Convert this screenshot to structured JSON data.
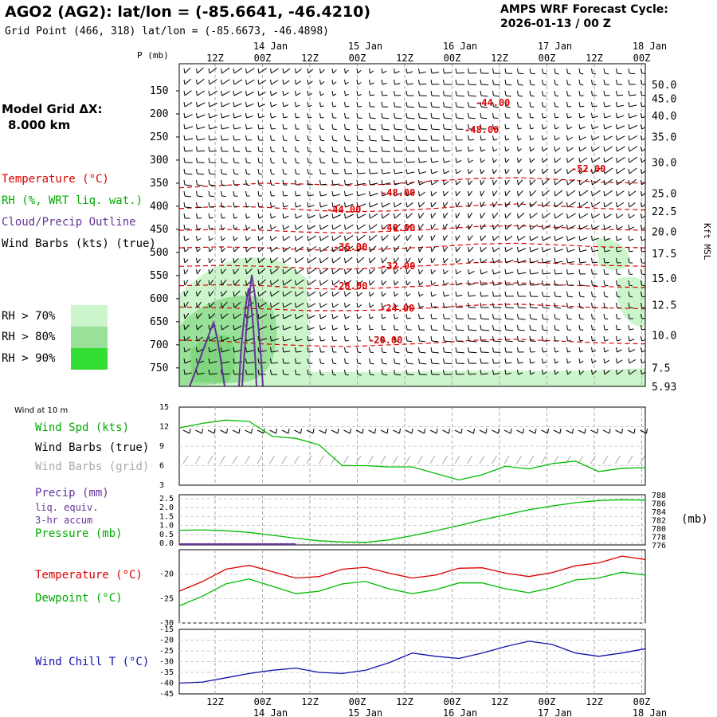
{
  "header": {
    "title": "AGO2 (AG2):  lat/lon = (-85.6641, -46.4210)",
    "grid_point": "Grid Point (466, 318) lat/lon = (-85.6673, -46.4898)",
    "cycle_label": "AMPS WRF Forecast Cycle:",
    "cycle_value": "2026-01-13 / 00  Z"
  },
  "left_panel": {
    "model_grid_label": "Model Grid ΔX:",
    "model_grid_value": "8.000 km",
    "legend_temperature": "Temperature (°C)",
    "legend_rh": "RH (%, WRT liq. wat.)",
    "legend_cloud": "Cloud/Precip Outline",
    "legend_wind": "Wind Barbs (kts) (true)",
    "rh_levels": [
      "RH > 70%",
      "RH > 80%",
      "RH > 90%"
    ]
  },
  "colors": {
    "temperature": "#dd0000",
    "rh70": "#ccf5cc",
    "rh80": "#99e099",
    "rh90": "#33dd33",
    "cloud": "#663399",
    "dewpoint": "#00bb00",
    "windchill": "#1111aa",
    "grid_wind": "#aaaaaa"
  },
  "time_axis": {
    "top_hours": [
      "12Z",
      "00Z",
      "12Z",
      "00Z",
      "12Z",
      "00Z",
      "12Z",
      "00Z",
      "12Z",
      "00Z"
    ],
    "top_dates": [
      "14 Jan",
      "15 Jan",
      "16 Jan",
      "17 Jan",
      "18 Jan"
    ],
    "bottom_hours": [
      "12Z",
      "00Z",
      "12Z",
      "00Z",
      "12Z",
      "00Z",
      "12Z",
      "00Z",
      "12Z",
      "00Z"
    ],
    "bottom_dates": [
      "14 Jan",
      "15 Jan",
      "16 Jan",
      "17 Jan",
      "18 Jan"
    ]
  },
  "chart_data": [
    {
      "type": "line",
      "name": "upper-air-cross-section",
      "ylabel": "P (mb)",
      "ylabel_right": "Kft MSL",
      "pressure_ticks": [
        "150",
        "200",
        "250",
        "300",
        "350",
        "400",
        "450",
        "500",
        "550",
        "600",
        "650",
        "700",
        "750"
      ],
      "height_ticks": [
        "50.0",
        "45.0",
        "40.0",
        "35.0",
        "30.0",
        "25.0",
        "22.5",
        "20.0",
        "17.5",
        "15.0",
        "12.5",
        "10.0",
        "7.5",
        "5.93"
      ],
      "isotherm_labels": [
        "-44.00",
        "-48.00",
        "-52.00",
        "-48.00",
        "-44.00",
        "-40.00",
        "-36.00",
        "-32.00",
        "-28.00",
        "-24.00",
        "-20.00"
      ],
      "series": [
        {
          "name": "isotherm -20",
          "values": [
            690,
            692,
            698,
            702,
            704,
            700,
            696,
            690,
            688,
            692,
            696,
            698
          ]
        },
        {
          "name": "isotherm -24",
          "values": [
            618,
            620,
            622,
            626,
            626,
            624,
            620,
            614,
            612,
            616,
            620,
            622
          ]
        },
        {
          "name": "isotherm -28",
          "values": [
            572,
            570,
            572,
            578,
            580,
            576,
            572,
            566,
            566,
            570,
            574,
            576
          ]
        },
        {
          "name": "isotherm -32",
          "values": [
            530,
            528,
            530,
            534,
            536,
            532,
            528,
            522,
            520,
            524,
            528,
            530
          ]
        },
        {
          "name": "isotherm -36",
          "values": [
            490,
            488,
            490,
            494,
            496,
            492,
            488,
            482,
            480,
            484,
            488,
            490
          ]
        },
        {
          "name": "isotherm -40",
          "values": [
            452,
            450,
            452,
            456,
            458,
            454,
            450,
            444,
            442,
            446,
            450,
            452
          ]
        },
        {
          "name": "isotherm -44",
          "values": [
            405,
            400,
            402,
            408,
            412,
            410,
            405,
            398,
            395,
            400,
            405,
            408
          ]
        },
        {
          "name": "isotherm -48",
          "values": [
            360,
            355,
            350,
            352,
            355,
            352,
            345,
            340,
            338,
            342,
            348,
            350
          ]
        }
      ]
    },
    {
      "type": "line",
      "name": "surface-wind-speed",
      "title": "Wind at 10 m",
      "legend": [
        "Wind Spd (kts)",
        "Wind Barbs (true)",
        "Wind Barbs (grid)"
      ],
      "y_ticks": [
        "15",
        "12",
        "9",
        "6",
        "3"
      ],
      "ylim": [
        3,
        15
      ],
      "x_hours": [
        0,
        6,
        12,
        18,
        24,
        30,
        36,
        42,
        48,
        54,
        60,
        66,
        72,
        78,
        84,
        90,
        96,
        102,
        108,
        114,
        120
      ],
      "series": [
        {
          "name": "Wind Spd (kts)",
          "values": [
            11.8,
            12.5,
            13.0,
            12.8,
            10.5,
            10.2,
            9.2,
            6.0,
            6.0,
            5.8,
            5.8,
            4.8,
            3.8,
            4.6,
            5.9,
            5.5,
            6.3,
            6.7,
            5.1,
            5.6,
            5.7
          ]
        }
      ]
    },
    {
      "type": "line",
      "name": "precip-pressure",
      "legend": [
        "Precip (mm)",
        "liq. equiv.",
        "3-hr accum",
        "Pressure (mb)"
      ],
      "y_ticks_left": [
        "2.5",
        "2.0",
        "1.5",
        "1.0",
        "0.5",
        "0.0"
      ],
      "y_ticks_right": [
        "788",
        "786",
        "784",
        "782",
        "780",
        "778",
        "776"
      ],
      "ylabel_right": "(mb)",
      "ylim": [
        776,
        788
      ],
      "x_hours": [
        0,
        6,
        12,
        18,
        24,
        30,
        36,
        42,
        48,
        54,
        60,
        66,
        72,
        78,
        84,
        90,
        96,
        102,
        108,
        114,
        120
      ],
      "series": [
        {
          "name": "Pressure (mb)",
          "values": [
            779.5,
            779.6,
            779.4,
            779.0,
            778.3,
            777.6,
            777.0,
            776.7,
            776.6,
            777.2,
            778.2,
            779.4,
            780.6,
            782.0,
            783.2,
            784.4,
            785.3,
            786.1,
            786.6,
            786.8,
            786.7
          ]
        },
        {
          "name": "Precip (mm)",
          "values": [
            0.05,
            0.05,
            0.05,
            0.05,
            0.05,
            0,
            0,
            0,
            0,
            0,
            0,
            0,
            0,
            0,
            0,
            0,
            0,
            0,
            0,
            0,
            0
          ]
        }
      ]
    },
    {
      "type": "line",
      "name": "temperature-dewpoint",
      "legend": [
        "Temperature (°C)",
        "Dewpoint (°C)"
      ],
      "y_ticks": [
        "-20",
        "-25",
        "-30"
      ],
      "ylim": [
        -30,
        -15
      ],
      "x_hours": [
        0,
        6,
        12,
        18,
        24,
        30,
        36,
        42,
        48,
        54,
        60,
        66,
        72,
        78,
        84,
        90,
        96,
        102,
        108,
        114,
        120
      ],
      "series": [
        {
          "name": "Temperature (°C)",
          "values": [
            -23.5,
            -21.5,
            -19.0,
            -18.2,
            -19.5,
            -20.8,
            -20.5,
            -19.0,
            -18.6,
            -19.8,
            -20.8,
            -20.2,
            -18.8,
            -18.7,
            -19.8,
            -20.5,
            -19.7,
            -18.3,
            -17.7,
            -16.3,
            -17.0
          ]
        },
        {
          "name": "Dewpoint (°C)",
          "values": [
            -26.5,
            -24.5,
            -22.0,
            -21.0,
            -22.5,
            -24.0,
            -23.5,
            -22.0,
            -21.5,
            -23.0,
            -24.0,
            -23.2,
            -21.8,
            -21.8,
            -23.0,
            -23.8,
            -22.8,
            -21.2,
            -20.8,
            -19.6,
            -20.2
          ]
        }
      ]
    },
    {
      "type": "line",
      "name": "wind-chill",
      "legend": [
        "Wind Chill T (°C)"
      ],
      "y_ticks": [
        "-15",
        "-20",
        "-25",
        "-30",
        "-35",
        "-40",
        "-45"
      ],
      "ylim": [
        -45,
        -15
      ],
      "x_hours": [
        0,
        6,
        12,
        18,
        24,
        30,
        36,
        42,
        48,
        54,
        60,
        66,
        72,
        78,
        84,
        90,
        96,
        102,
        108,
        114,
        120
      ],
      "series": [
        {
          "name": "Wind Chill T (°C)",
          "values": [
            -40.0,
            -39.5,
            -37.5,
            -35.5,
            -34.0,
            -33.0,
            -35.0,
            -35.5,
            -34.0,
            -30.5,
            -26.0,
            -27.5,
            -28.5,
            -26.0,
            -23.0,
            -20.5,
            -22.0,
            -26.0,
            -27.5,
            -26.0,
            -24.0
          ]
        }
      ]
    }
  ]
}
